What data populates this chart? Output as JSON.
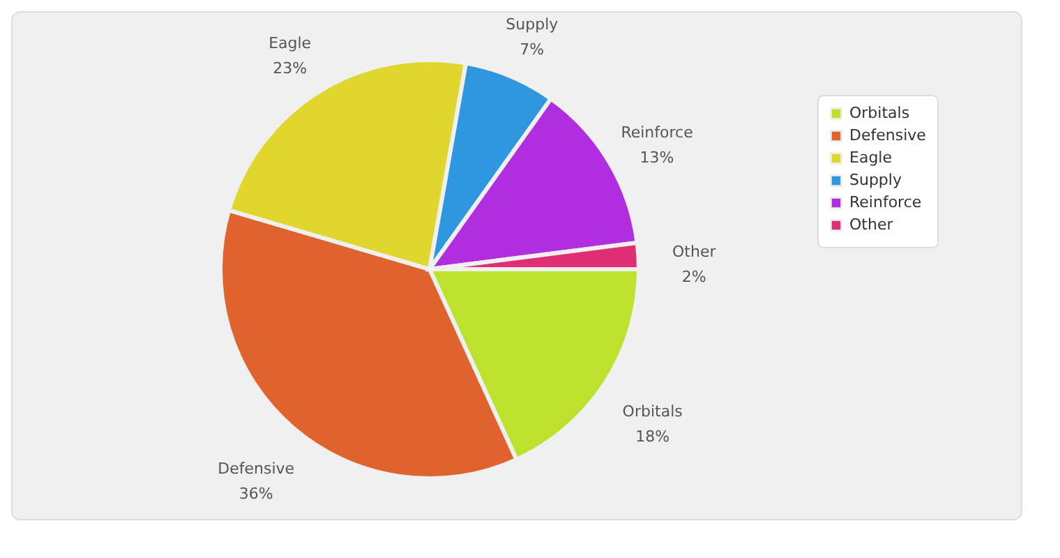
{
  "chart_data": {
    "type": "pie",
    "categories": [
      "Orbitals",
      "Defensive",
      "Eagle",
      "Supply",
      "Reinforce",
      "Other"
    ],
    "values": [
      18,
      36,
      23,
      7,
      13,
      2
    ],
    "colors": [
      "#bde22e",
      "#e0632e",
      "#e0d62e",
      "#2e97e0",
      "#b02ee0",
      "#e02e76"
    ],
    "value_labels": [
      "18%",
      "36%",
      "23%",
      "7%",
      "13%",
      "2%"
    ],
    "legend": "top right"
  }
}
